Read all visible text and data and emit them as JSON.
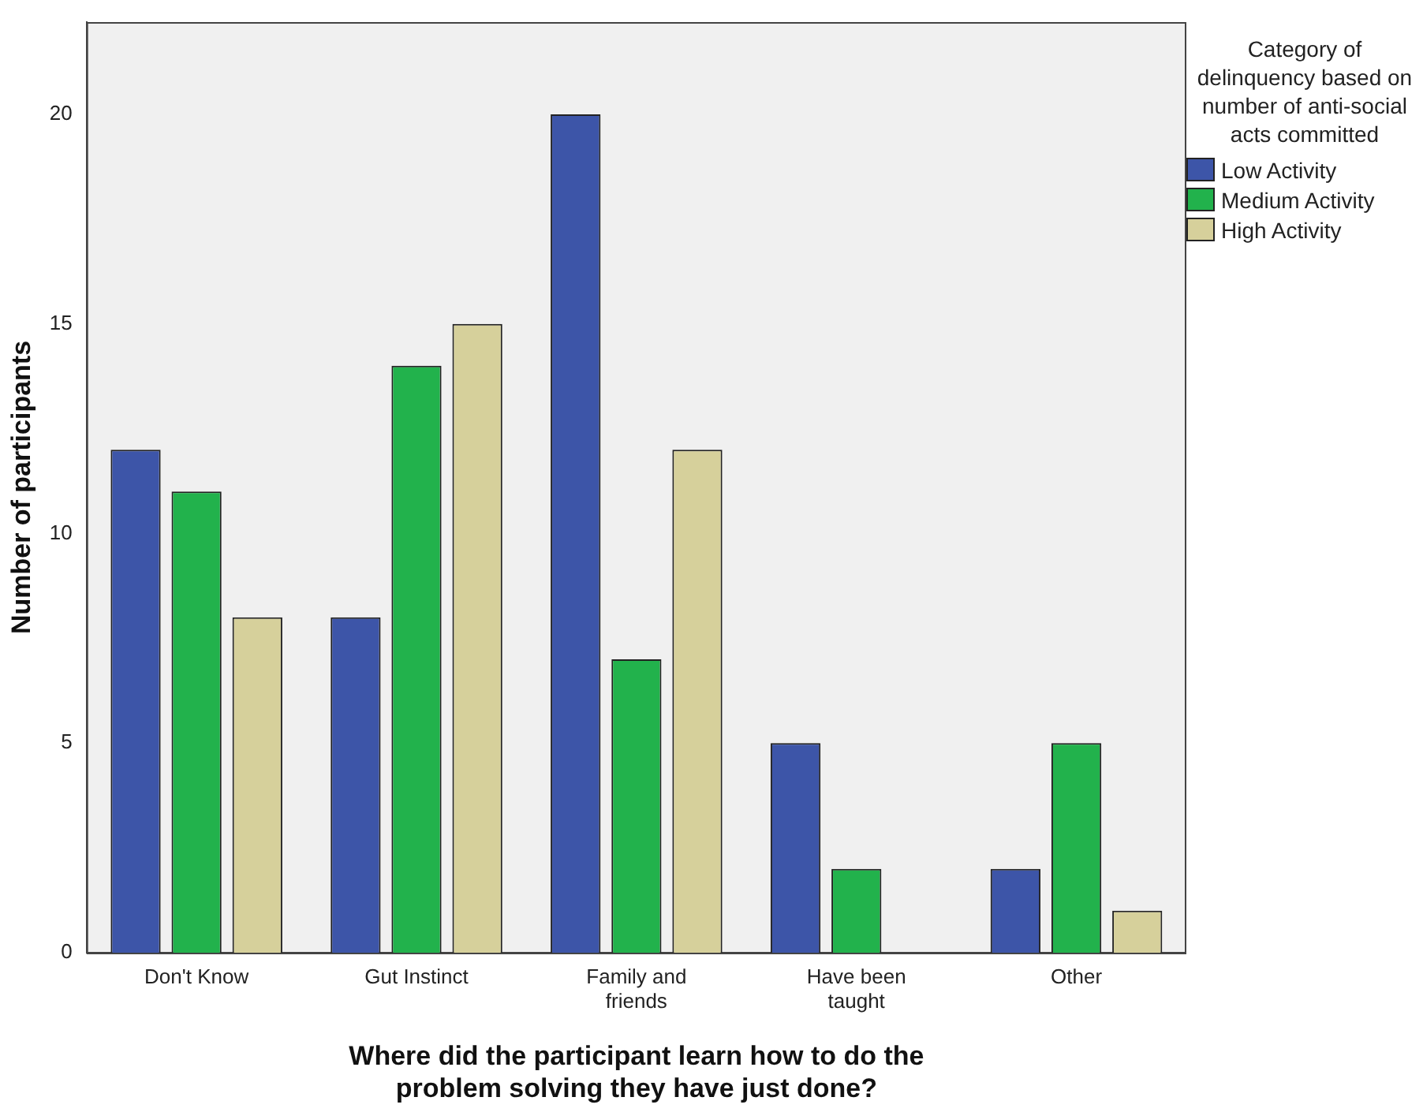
{
  "chart_data": {
    "type": "bar",
    "categories": [
      "Don't Know",
      "Gut Instinct",
      "Family and friends",
      "Have been taught",
      "Other"
    ],
    "series": [
      {
        "name": "Low Activity",
        "color": "#3d55a8",
        "values": [
          12,
          8,
          20,
          5,
          2
        ]
      },
      {
        "name": "Medium Activity",
        "color": "#22b24c",
        "values": [
          11,
          14,
          7,
          2,
          5
        ]
      },
      {
        "name": "High Activity",
        "color": "#d6d09b",
        "values": [
          8,
          15,
          12,
          0,
          1
        ]
      }
    ],
    "xlabel": "Where did the participant learn how to do the problem solving they have just done?",
    "ylabel": "Number of participants",
    "legend_title": "Category of delinquency based on number of anti-social acts committed",
    "legend": "top right",
    "ylim": [
      0,
      22.2
    ],
    "yticks": [
      0,
      5,
      10,
      15,
      20
    ],
    "grid": false
  }
}
